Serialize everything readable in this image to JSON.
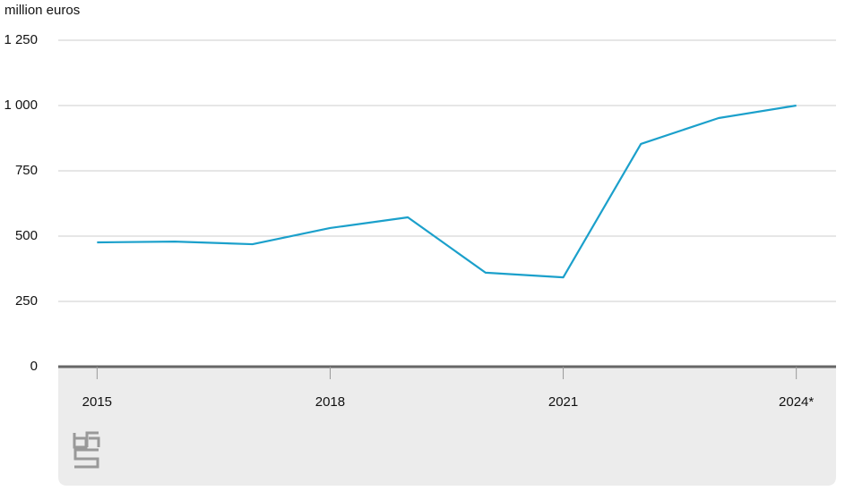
{
  "chart_data": {
    "type": "line",
    "y_label": "million euros",
    "categories": [
      "2015",
      null,
      null,
      "2018",
      null,
      null,
      "2021",
      null,
      null,
      "2024*"
    ],
    "series": [
      {
        "name": "Value",
        "color": "#1ba0cb",
        "values": [
          476,
          479,
          469,
          531,
          572,
          360,
          342,
          853,
          952,
          1000
        ]
      }
    ],
    "ylim": [
      0,
      1250
    ],
    "yticks": [
      0,
      250,
      500,
      750,
      {
        "value": 1000,
        "label": "1 000"
      },
      {
        "value": 1250,
        "label": "1 250"
      }
    ],
    "grid": true
  }
}
